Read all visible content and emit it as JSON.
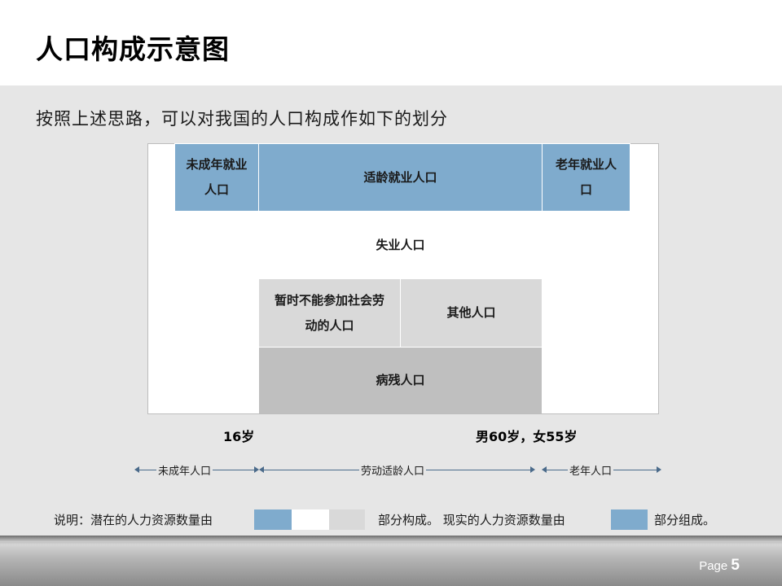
{
  "title": "人口构成示意图",
  "subtitle": "按照上述思路，可以对我国的人口构成作如下的划分",
  "diagram": {
    "cells": {
      "minor_employed": "未成年就业人口",
      "working_age_employed": "适龄就业人口",
      "elderly_employed": "老年就业人口",
      "unemployed": "失业人口",
      "temporarily_unable": "暂时不能参加社会劳动的人口",
      "other": "其他人口",
      "disabled": "病残人口"
    },
    "age_left": "16岁",
    "age_right": "男60岁，女55岁"
  },
  "arrows": {
    "minor": "未成年人口",
    "working_age": "劳动适龄人口",
    "elderly": "老年人口"
  },
  "note": {
    "prefix": "说明：潜在的人力资源数量由",
    "middle": "部分构成。 现实的人力资源数量由",
    "suffix": "部分组成。"
  },
  "footer": {
    "page_label": "Page",
    "page_number": "5"
  },
  "colors": {
    "blue": "#7fabcd",
    "light_gray": "#d9d9d9",
    "mid_gray": "#bfbfbf",
    "background": "#e6e6e6"
  }
}
